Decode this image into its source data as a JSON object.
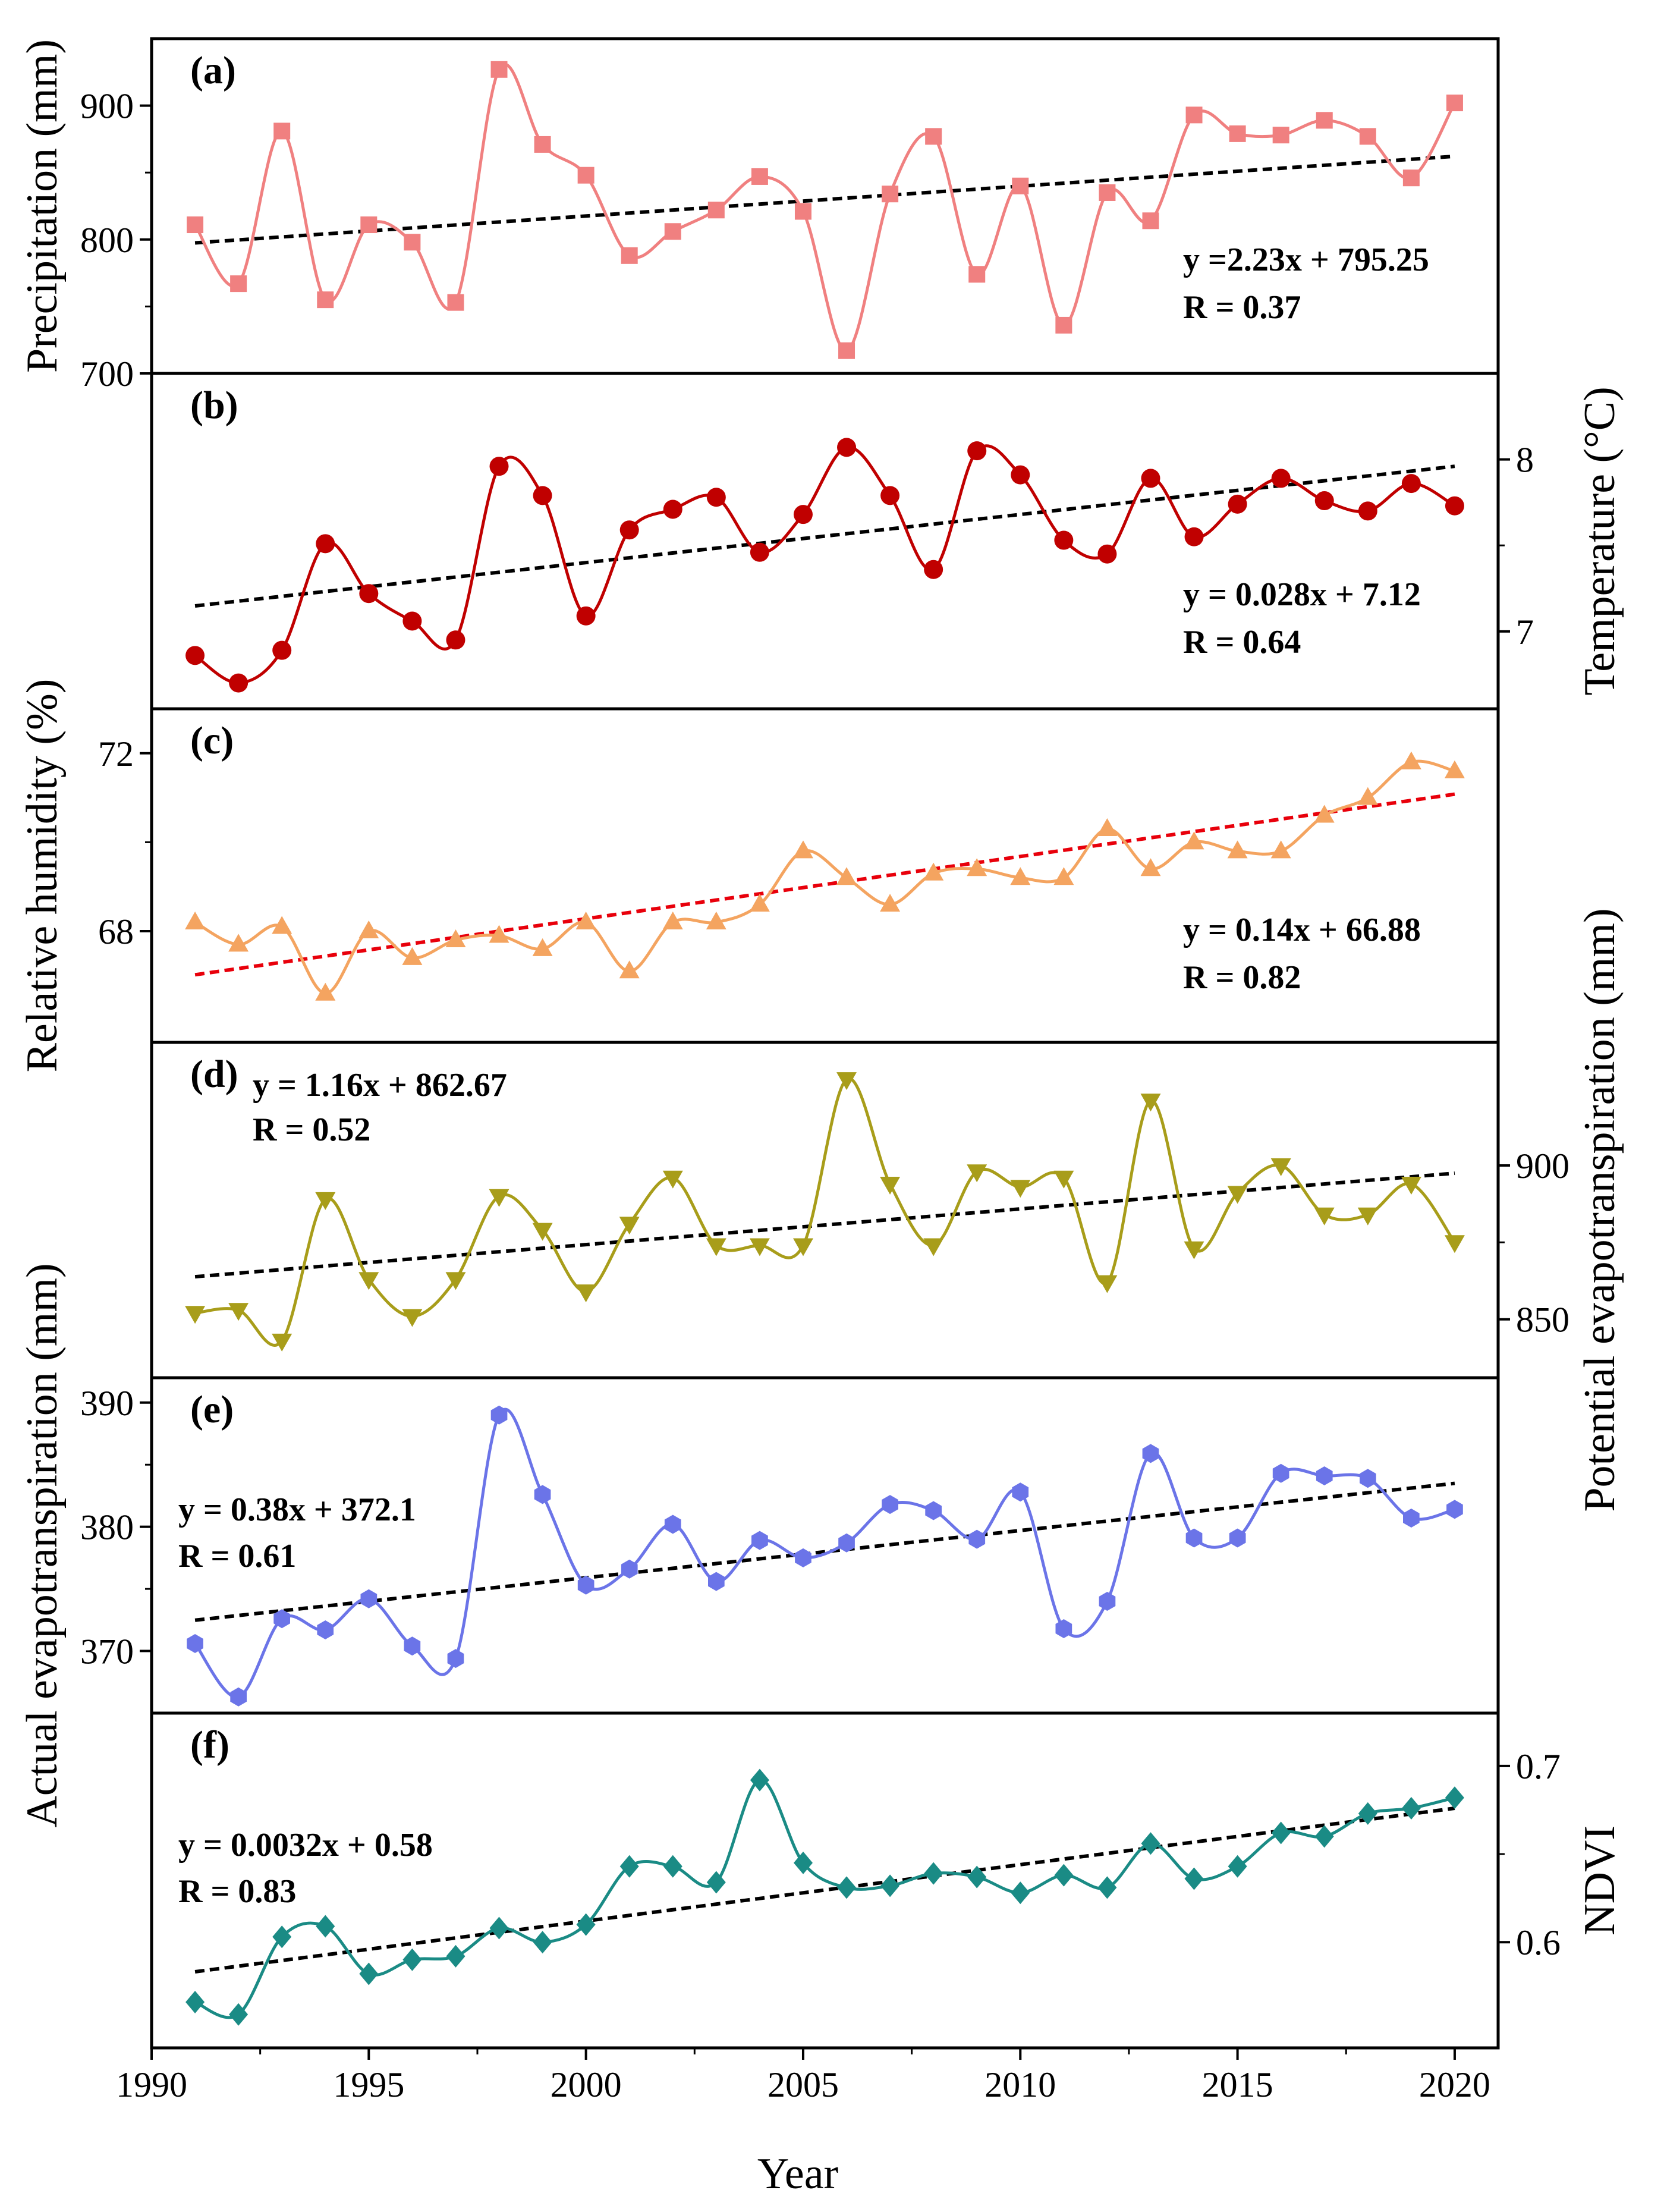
{
  "chart_data": {
    "type": "line",
    "shared_x": {
      "label": "Year",
      "range": [
        1990,
        2021
      ],
      "ticks": [
        1990,
        1995,
        2000,
        2005,
        2010,
        2015,
        2020
      ],
      "years": [
        1991,
        1992,
        1993,
        1994,
        1995,
        1996,
        1997,
        1998,
        1999,
        2000,
        2001,
        2002,
        2003,
        2004,
        2005,
        2006,
        2007,
        2008,
        2009,
        2010,
        2011,
        2012,
        2013,
        2014,
        2015,
        2016,
        2017,
        2018,
        2019,
        2020
      ]
    },
    "panels": [
      {
        "id": "a",
        "label": "(a)",
        "axis_side": "left",
        "ylabel": "Precipitation (mm)",
        "ylim": [
          700,
          950
        ],
        "ticks": [
          700,
          800,
          900
        ],
        "color": "#f08080",
        "marker": "square",
        "values": [
          811,
          767,
          881,
          755,
          811,
          798,
          753,
          927,
          871,
          848,
          788,
          806,
          822,
          847,
          821,
          717,
          834,
          877,
          774,
          840,
          736,
          835,
          814,
          893,
          879,
          878,
          889,
          877,
          846,
          902
        ],
        "trend": {
          "slope": 2.23,
          "intercept": 795.25,
          "color": "#000000"
        },
        "equation": "y =2.23x + 795.25",
        "r_text": "R = 0.37",
        "eq_position": "lower-right"
      },
      {
        "id": "b",
        "label": "(b)",
        "axis_side": "right",
        "ylabel": "Temperature (°C)",
        "ylim": [
          6.55,
          8.5
        ],
        "ticks": [
          7,
          8
        ],
        "color": "#c00000",
        "marker": "circle",
        "values": [
          6.86,
          6.7,
          6.89,
          7.51,
          7.22,
          7.06,
          6.95,
          7.96,
          7.79,
          7.09,
          7.59,
          7.71,
          7.78,
          7.46,
          7.68,
          8.07,
          7.79,
          7.36,
          8.05,
          7.91,
          7.53,
          7.45,
          7.89,
          7.55,
          7.74,
          7.89,
          7.76,
          7.7,
          7.86,
          7.73
        ],
        "trend": {
          "slope": 0.028,
          "intercept": 7.12,
          "color": "#000000"
        },
        "equation": "y = 0.028x + 7.12",
        "r_text": "R = 0.64",
        "eq_position": "lower-right"
      },
      {
        "id": "c",
        "label": "(c)",
        "axis_side": "left",
        "ylabel": "Relative humidity (%)",
        "ylim": [
          65.5,
          73
        ],
        "ticks": [
          68,
          72
        ],
        "color": "#f4a460",
        "marker": "triangle-up",
        "values": [
          68.2,
          67.7,
          68.1,
          66.6,
          68.0,
          67.4,
          67.8,
          67.9,
          67.6,
          68.2,
          67.1,
          68.2,
          68.2,
          68.6,
          69.8,
          69.2,
          68.6,
          69.3,
          69.4,
          69.2,
          69.2,
          70.3,
          69.4,
          70.0,
          69.8,
          69.8,
          70.6,
          71.0,
          71.8,
          71.6
        ],
        "trend": {
          "slope": 0.14,
          "intercept": 66.88,
          "color": "#e8000b"
        },
        "equation": "y = 0.14x + 66.88",
        "r_text": "R = 0.82",
        "eq_position": "lower-right"
      },
      {
        "id": "d",
        "label": "(d)",
        "axis_side": "right",
        "ylabel": "Potential evapotranspiration (mm)",
        "ylim": [
          831,
          940
        ],
        "ticks": [
          850,
          900
        ],
        "color": "#a89d1a",
        "marker": "triangle-down",
        "values": [
          852,
          853,
          843,
          889,
          863,
          851,
          863,
          890,
          879,
          859,
          881,
          896,
          874,
          874,
          874,
          928,
          894,
          874,
          898,
          893,
          896,
          862,
          921,
          873,
          891,
          900,
          884,
          884,
          894,
          875
        ],
        "trend": {
          "slope": 1.16,
          "intercept": 862.67,
          "color": "#000000"
        },
        "equation": "y = 1.16x + 862.67",
        "r_text": "R = 0.52",
        "eq_position": "top-left"
      },
      {
        "id": "e",
        "label": "(e)",
        "axis_side": "left",
        "ylabel": "Actual evapotranspiration (mm)",
        "ylim": [
          365,
          392
        ],
        "ticks": [
          370,
          380,
          390
        ],
        "color": "#6b74e8",
        "marker": "hexagon",
        "values": [
          370.6,
          366.3,
          372.6,
          371.7,
          374.2,
          370.4,
          369.4,
          389.0,
          382.6,
          375.3,
          376.6,
          380.2,
          375.6,
          378.9,
          377.5,
          378.7,
          381.8,
          381.3,
          379.0,
          382.8,
          371.8,
          374.0,
          385.9,
          379.1,
          379.1,
          384.3,
          384.1,
          383.9,
          380.7,
          381.4
        ],
        "trend": {
          "slope": 0.38,
          "intercept": 372.1,
          "color": "#000000"
        },
        "equation": "y = 0.38x + 372.1",
        "r_text": "R = 0.61",
        "eq_position": "upper-left"
      },
      {
        "id": "f",
        "label": "(f)",
        "axis_side": "right",
        "ylabel": "NDVI",
        "ylim": [
          0.54,
          0.73
        ],
        "ticks": [
          0.6,
          0.7
        ],
        "color": "#1a8b85",
        "marker": "diamond",
        "values": [
          0.566,
          0.559,
          0.603,
          0.609,
          0.582,
          0.59,
          0.592,
          0.608,
          0.6,
          0.61,
          0.643,
          0.643,
          0.634,
          0.692,
          0.645,
          0.631,
          0.632,
          0.639,
          0.637,
          0.628,
          0.638,
          0.631,
          0.656,
          0.636,
          0.643,
          0.662,
          0.66,
          0.673,
          0.676,
          0.682
        ],
        "trend": {
          "slope": 0.0032,
          "intercept": 0.58,
          "color": "#000000"
        },
        "equation": "y = 0.0032x + 0.58",
        "r_text": "R = 0.83",
        "eq_position": "upper-left"
      }
    ]
  }
}
